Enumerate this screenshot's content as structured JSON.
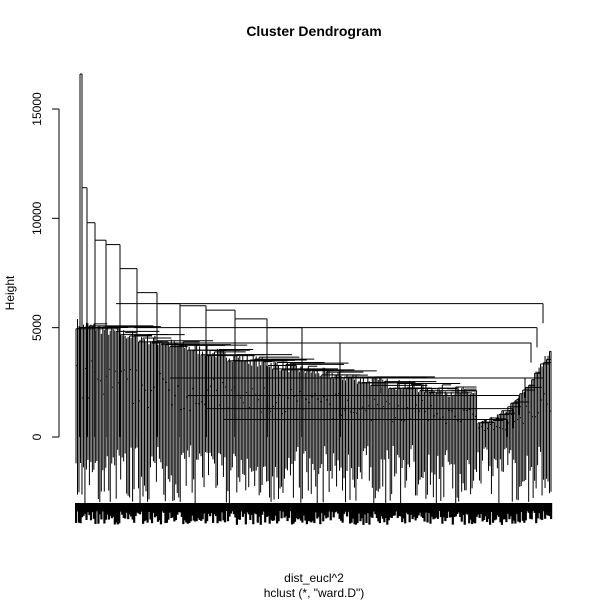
{
  "chart_data": {
    "type": "dendrogram",
    "title": "Cluster Dendrogram",
    "ylabel": "Height",
    "xlabel_line1": "dist_eucl^2",
    "xlabel_line2": "hclust (*, \"ward.D\")",
    "ylim": [
      0,
      16600
    ],
    "yticks": [
      0,
      5000,
      10000,
      15000
    ],
    "ytick_labels": [
      "0",
      "5000",
      "10000",
      "15000"
    ],
    "linkage": "ward.D",
    "top_merge_height": 16600,
    "major_merges": [
      {
        "height": 16600
      },
      {
        "height": 11400
      },
      {
        "height": 9800
      },
      {
        "height": 9000
      },
      {
        "height": 8800
      },
      {
        "height": 7700
      },
      {
        "height": 6600
      },
      {
        "height": 6100
      },
      {
        "height": 6000
      },
      {
        "height": 5800
      },
      {
        "height": 5400
      },
      {
        "height": 5000
      },
      {
        "height": 4300
      },
      {
        "height": 2700
      }
    ]
  }
}
